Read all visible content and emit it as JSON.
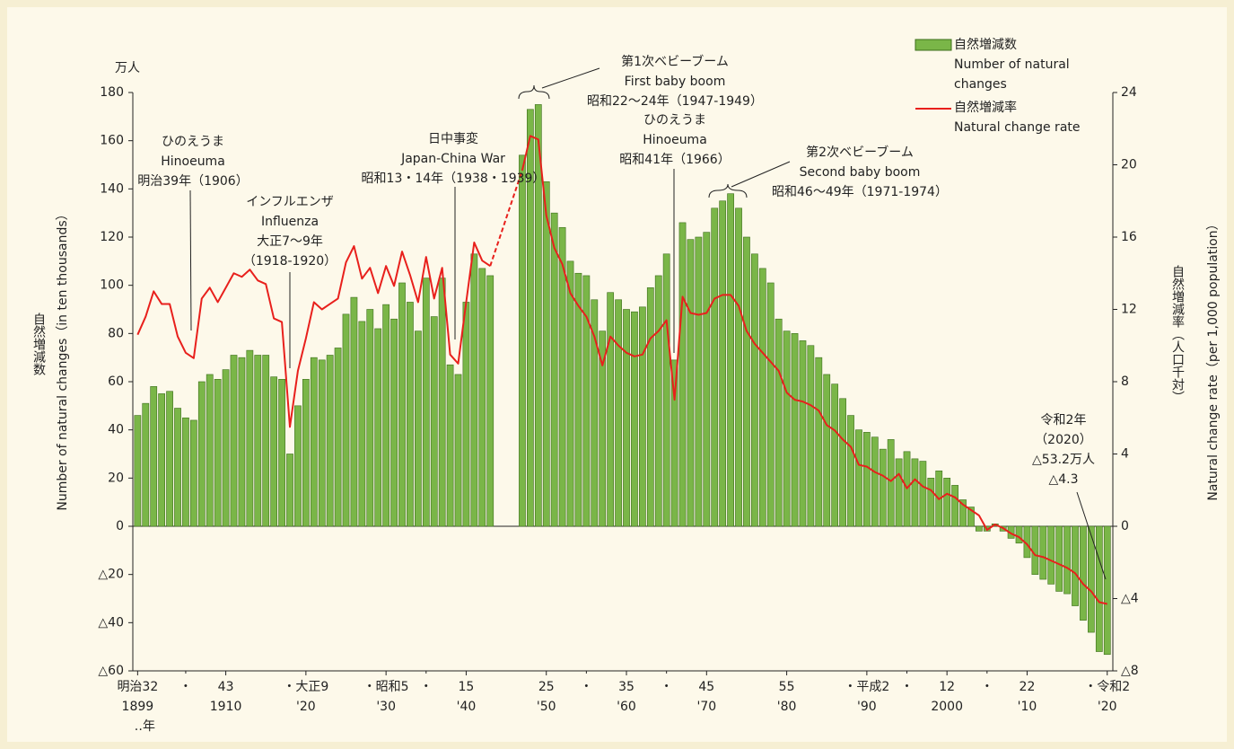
{
  "chart_data": {
    "type": "bar_line",
    "y_unit_label": "万人",
    "y_title": "Number of natural changes（in ten thousands）",
    "y_title_ja": "自然増減数",
    "y2_title": "Natural change rate（per 1,000 population）",
    "y2_title_ja": "自然増減率（人口千対）",
    "x_unit_label": "‥年",
    "x": [
      1899,
      1900,
      1901,
      1902,
      1903,
      1904,
      1905,
      1906,
      1907,
      1908,
      1909,
      1910,
      1911,
      1912,
      1913,
      1914,
      1915,
      1916,
      1917,
      1918,
      1919,
      1920,
      1921,
      1922,
      1923,
      1924,
      1925,
      1926,
      1927,
      1928,
      1929,
      1930,
      1931,
      1932,
      1933,
      1934,
      1935,
      1936,
      1937,
      1938,
      1939,
      1940,
      1941,
      1942,
      1943,
      1944,
      1945,
      1946,
      1947,
      1948,
      1949,
      1950,
      1951,
      1952,
      1953,
      1954,
      1955,
      1956,
      1957,
      1958,
      1959,
      1960,
      1961,
      1962,
      1963,
      1964,
      1965,
      1966,
      1967,
      1968,
      1969,
      1970,
      1971,
      1972,
      1973,
      1974,
      1975,
      1976,
      1977,
      1978,
      1979,
      1980,
      1981,
      1982,
      1983,
      1984,
      1985,
      1986,
      1987,
      1988,
      1989,
      1990,
      1991,
      1992,
      1993,
      1994,
      1995,
      1996,
      1997,
      1998,
      1999,
      2000,
      2001,
      2002,
      2003,
      2004,
      2005,
      2006,
      2007,
      2008,
      2009,
      2010,
      2011,
      2012,
      2013,
      2014,
      2015,
      2016,
      2017,
      2018,
      2019,
      2020
    ],
    "series": [
      {
        "name": "自然増減数",
        "name_en": [
          "Number of natural",
          "changes"
        ],
        "kind": "bar",
        "color": "#7ab648",
        "stroke": "#3d6e1c",
        "values": [
          46,
          51,
          58,
          55,
          56,
          49,
          45,
          44,
          60,
          63,
          61,
          65,
          71,
          70,
          73,
          71,
          71,
          62,
          61,
          30,
          50,
          61,
          70,
          69,
          71,
          74,
          88,
          95,
          85,
          90,
          82,
          92,
          86,
          101,
          93,
          81,
          103,
          87,
          103,
          67,
          63,
          93,
          113,
          107,
          104,
          null,
          null,
          null,
          154,
          173,
          175,
          143,
          130,
          124,
          110,
          105,
          104,
          94,
          81,
          97,
          94,
          90,
          89,
          91,
          99,
          104,
          113,
          69,
          126,
          119,
          120,
          122,
          132,
          135,
          138,
          132,
          120,
          113,
          107,
          101,
          86,
          81,
          80,
          77,
          75,
          70,
          63,
          59,
          53,
          46,
          40,
          39,
          37,
          32,
          36,
          28,
          31,
          28,
          27,
          20,
          23,
          20,
          17,
          11,
          8,
          -2,
          -2,
          1,
          -2,
          -5,
          -7,
          -13,
          -20,
          -22,
          -24,
          -27,
          -28,
          -33,
          -39,
          -44,
          -52,
          -53.2
        ]
      },
      {
        "name": "自然増減率",
        "name_en": [
          "Natural change rate"
        ],
        "kind": "line",
        "axis": "y2",
        "color": "#e8201c",
        "values": [
          10.6,
          11.6,
          13.0,
          12.3,
          12.3,
          10.5,
          9.6,
          9.3,
          12.6,
          13.2,
          12.4,
          13.2,
          14.0,
          13.8,
          14.2,
          13.6,
          13.4,
          11.5,
          11.3,
          5.5,
          8.6,
          10.4,
          12.4,
          12.0,
          12.3,
          12.6,
          14.6,
          15.5,
          13.7,
          14.3,
          12.9,
          14.4,
          13.3,
          15.2,
          13.9,
          12.4,
          14.9,
          12.6,
          14.3,
          9.5,
          9.0,
          12.4,
          15.7,
          14.7,
          14.4,
          null,
          null,
          null,
          19.7,
          21.6,
          21.4,
          17.2,
          15.4,
          14.5,
          12.9,
          12.2,
          11.6,
          10.5,
          8.9,
          10.5,
          10.0,
          9.6,
          9.4,
          9.5,
          10.4,
          10.8,
          11.4,
          7.0,
          12.7,
          11.8,
          11.7,
          11.8,
          12.6,
          12.8,
          12.8,
          12.2,
          10.8,
          10.1,
          9.6,
          9.1,
          8.6,
          7.4,
          7.0,
          6.9,
          6.7,
          6.4,
          5.6,
          5.3,
          4.8,
          4.4,
          3.4,
          3.3,
          3.0,
          2.8,
          2.5,
          2.9,
          2.1,
          2.6,
          2.2,
          2.0,
          1.5,
          1.8,
          1.6,
          1.2,
          0.9,
          0.6,
          -0.2,
          0.1,
          -0.1,
          -0.4,
          -0.6,
          -1.0,
          -1.6,
          -1.7,
          -1.9,
          -2.1,
          -2.3,
          -2.6,
          -3.2,
          -3.6,
          -4.2,
          -4.3
        ]
      }
    ],
    "xlim": [
      1898.4,
      2020.7
    ],
    "xticks": [
      {
        "value": 1899,
        "label": "1899"
      },
      {
        "value": 1910,
        "label": "1910"
      },
      {
        "value": 1920,
        "label": "'20"
      },
      {
        "value": 1930,
        "label": "'30"
      },
      {
        "value": 1940,
        "label": "'40"
      },
      {
        "value": 1950,
        "label": "'50"
      },
      {
        "value": 1960,
        "label": "'60"
      },
      {
        "value": 1970,
        "label": "'70"
      },
      {
        "value": 1980,
        "label": "'80"
      },
      {
        "value": 1990,
        "label": "'90"
      },
      {
        "value": 2000,
        "label": "2000"
      },
      {
        "value": 2010,
        "label": "'10"
      },
      {
        "value": 2020,
        "label": "'20"
      }
    ],
    "xtick_era_labels": [
      "明治32",
      "43",
      "・大正9",
      "・昭和5",
      "15",
      "25",
      "35",
      "45",
      "55",
      "・平成2",
      "12",
      "22",
      "・令和2"
    ],
    "minor_xticks": [
      1905,
      1935,
      1955,
      1965,
      1995,
      2005
    ],
    "minor_xtick_label": "・",
    "ylim": [
      -60,
      180
    ],
    "yticks": [
      {
        "value": -60,
        "label": "△60"
      },
      {
        "value": -40,
        "label": "△40"
      },
      {
        "value": -20,
        "label": "△20"
      },
      0,
      20,
      40,
      60,
      80,
      100,
      120,
      140,
      160,
      180
    ],
    "y2lim": [
      -8,
      24
    ],
    "y2ticks": [
      {
        "value": -8,
        "label": "△8"
      },
      {
        "value": -4,
        "label": "△4"
      },
      0,
      4,
      8,
      12,
      16,
      20,
      24
    ],
    "annotations": [
      {
        "lines": [
          "ひのえうま",
          "Hinoeuma",
          "明治39年（1906）"
        ]
      },
      {
        "lines": [
          "インフルエンザ",
          "Influenza",
          "大正7〜9年",
          "（1918-1920）"
        ]
      },
      {
        "lines": [
          "日中事変",
          "Japan-China War",
          "昭和13・14年（1938・1939）"
        ]
      },
      {
        "lines": [
          "第1次ベビーブーム",
          "First baby boom",
          "昭和22〜24年（1947-1949）"
        ]
      },
      {
        "lines": [
          "ひのえうま",
          "Hinoeuma",
          "昭和41年（1966）"
        ]
      },
      {
        "lines": [
          "第2次ベビーブーム",
          "Second baby boom",
          "昭和46〜49年（1971-1974）"
        ]
      },
      {
        "lines": [
          "令和2年",
          "（2020）",
          "△53.2万人",
          "△4.3"
        ]
      }
    ]
  }
}
